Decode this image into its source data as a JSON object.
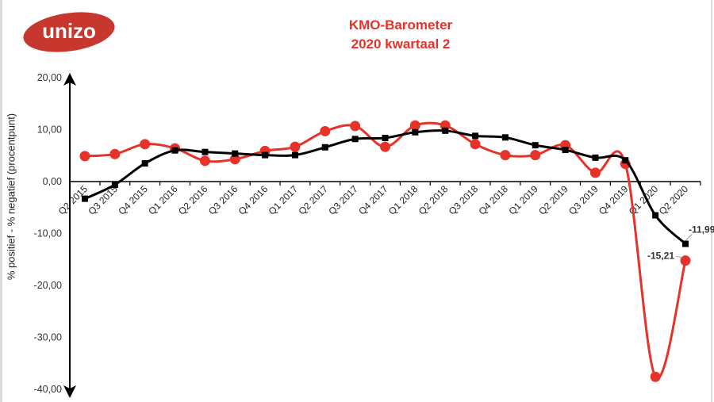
{
  "logo": {
    "text": "unizo",
    "color": "#c8372d"
  },
  "header": {
    "title_line1": "KMO-Barometer",
    "title_line2": "2020 kwartaal 2"
  },
  "chart_data": {
    "type": "line",
    "title": "KMO-Barometer 2020 kwartaal 2",
    "xlabel": "",
    "ylabel": "% positief - % negatief (procentpunt)",
    "ylim": [
      -40,
      20
    ],
    "yticks": [
      "20,00",
      "10,00",
      "0,00",
      "-10,00",
      "-20,00",
      "-30,00",
      "-40,00"
    ],
    "grid": false,
    "legend": "none",
    "categories": [
      "Q2 2015",
      "Q3 2015",
      "Q4 2015",
      "Q1 2016",
      "Q2 2016",
      "Q3 2016",
      "Q4 2016",
      "Q1 2017",
      "Q2 2017",
      "Q3 2017",
      "Q4 2017",
      "Q1 2018",
      "Q2 2018",
      "Q3 2018",
      "Q4 2018",
      "Q1 2019",
      "Q2 2019",
      "Q3 2019",
      "Q4 2019",
      "Q1 2020",
      "Q2 2020"
    ],
    "series": [
      {
        "name": "red-series",
        "color": "#e63329",
        "marker": "circle",
        "values": [
          4.9,
          5.3,
          7.2,
          6.4,
          4.0,
          4.3,
          5.9,
          6.7,
          9.7,
          10.7,
          6.7,
          10.8,
          10.8,
          7.2,
          5.1,
          5.1,
          7.0,
          1.7,
          3.4,
          -37.6,
          -15.21
        ],
        "annotations": [
          {
            "index": 20,
            "label": "-15,21"
          }
        ]
      },
      {
        "name": "black-series",
        "color": "#000000",
        "marker": "square",
        "values": [
          -3.3,
          -0.6,
          3.5,
          6.0,
          5.7,
          5.4,
          5.1,
          5.1,
          6.6,
          8.2,
          8.4,
          9.5,
          9.8,
          8.8,
          8.5,
          7.0,
          6.1,
          4.6,
          4.1,
          -6.5,
          -11.99
        ],
        "annotations": [
          {
            "index": 20,
            "label": "-11,99"
          }
        ]
      }
    ]
  }
}
